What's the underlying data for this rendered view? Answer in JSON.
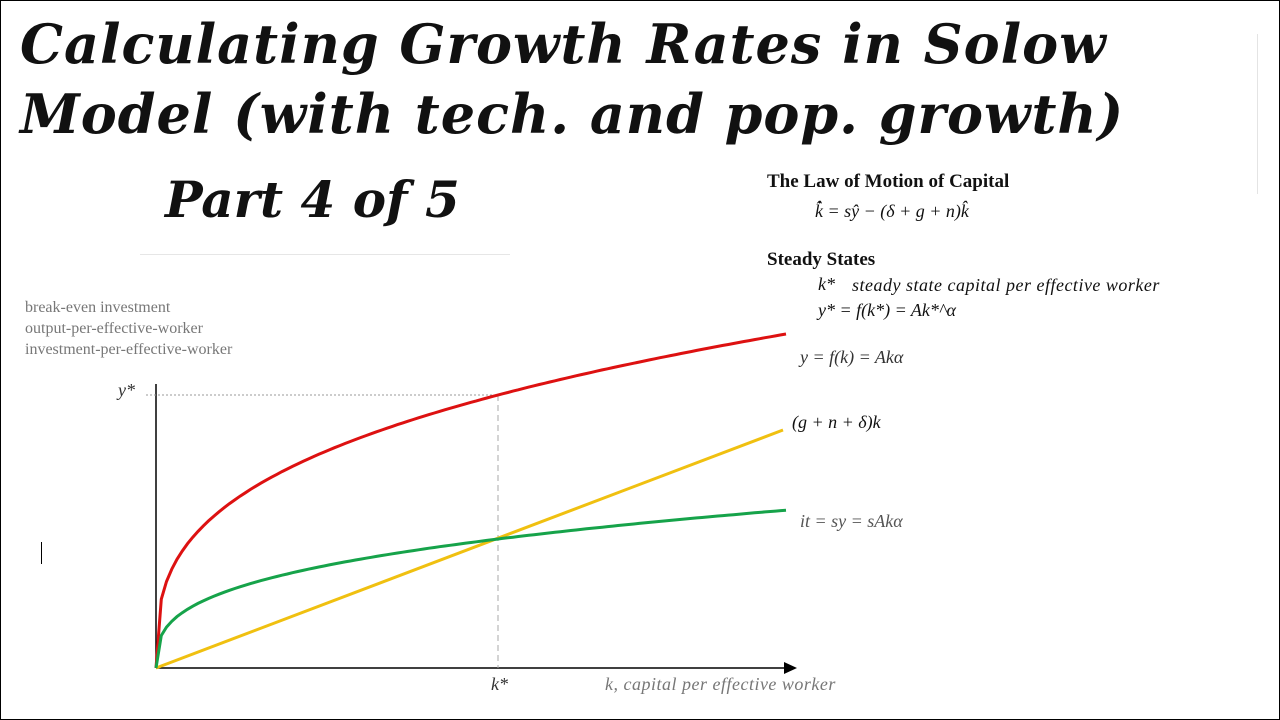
{
  "title": {
    "line1": "Calculating Growth Rates in Solow",
    "line2": "Model (with tech. and pop. growth)",
    "part": "Part 4 of 5"
  },
  "law": {
    "heading": "The Law of Motion of Capital",
    "equation": "k̂̇ = sŷ − (δ + g + n)k̂"
  },
  "steady": {
    "heading": "Steady States",
    "kstar_symbol": "k*",
    "kstar_desc": "steady state capital per effective worker",
    "ystar_eq": "y* = f(k*) = Ak*^α"
  },
  "legend": {
    "line1": "break-even investment",
    "line2": "output-per-effective-worker",
    "line3": "investment-per-effective-worker"
  },
  "axes": {
    "ystar_tick": "y*",
    "kstar_tick": "k*",
    "x_label": "k,  capital per effective worker"
  },
  "curves": {
    "output": {
      "label": "y = f(k) = Akα",
      "color": "#dd1111"
    },
    "breakeven": {
      "label": "(g + n + δ)k",
      "color": "#f0c010"
    },
    "investment": {
      "label": "it = sy = sAkα",
      "color": "#16a34a"
    }
  }
}
